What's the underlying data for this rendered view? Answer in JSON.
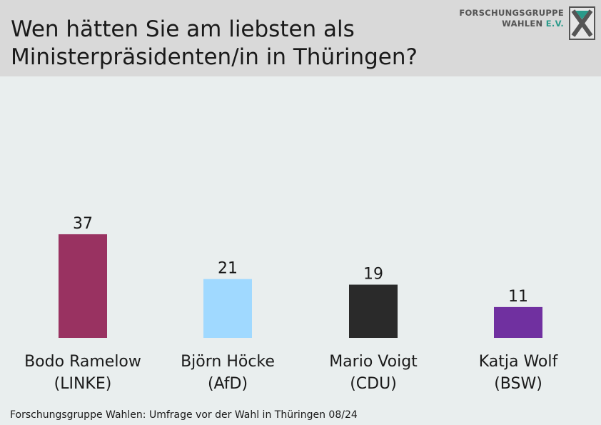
{
  "header": {
    "title": "Wen hätten Sie am liebsten als\nMinisterpräsidenten/in in Thüringen?",
    "logo": {
      "line1": "FORSCHUNGSGRUPPE",
      "line2_main": "WAHLEN",
      "line2_accent": "E.V."
    }
  },
  "chart_data": {
    "type": "bar",
    "categories": [
      "Bodo Ramelow\n(LINKE)",
      "Björn Höcke\n(AfD)",
      "Mario Voigt\n(CDU)",
      "Katja Wolf\n(BSW)"
    ],
    "values": [
      37,
      21,
      19,
      11
    ],
    "colors": [
      "#993261",
      "#a0d9ff",
      "#2a2a2a",
      "#7030a0"
    ],
    "title": "Wen hätten Sie am liebsten als Ministerpräsidenten/in in Thüringen?",
    "xlabel": "",
    "ylabel": "",
    "ylim": [
      0,
      40
    ],
    "grid": false,
    "legend": "none"
  },
  "footer": {
    "source": "Forschungsgruppe Wahlen: Umfrage vor der Wahl in Thüringen 08/24"
  }
}
